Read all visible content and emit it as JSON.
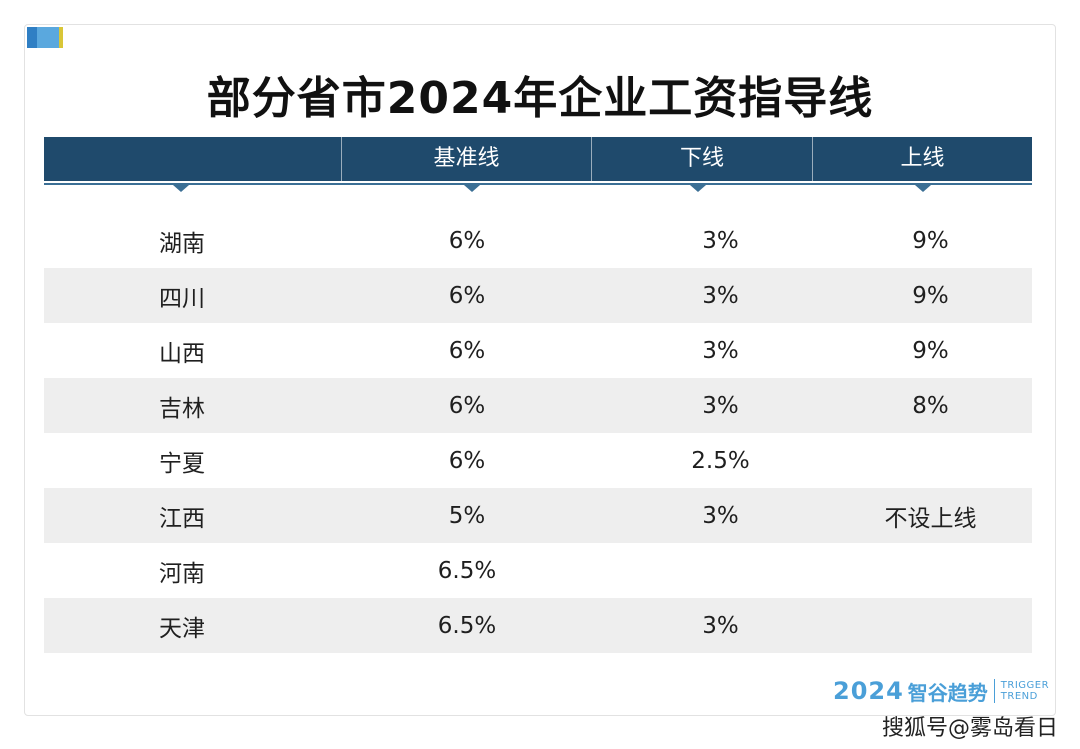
{
  "title": "部分省市2024年企业工资指导线",
  "columns": [
    "",
    "基准线",
    "下线",
    "上线"
  ],
  "rows": [
    {
      "province": "湖南",
      "base": "6%",
      "lower": "3%",
      "upper": "9%"
    },
    {
      "province": "四川",
      "base": "6%",
      "lower": "3%",
      "upper": "9%"
    },
    {
      "province": "山西",
      "base": "6%",
      "lower": "3%",
      "upper": "9%"
    },
    {
      "province": "吉林",
      "base": "6%",
      "lower": "3%",
      "upper": "8%"
    },
    {
      "province": "宁夏",
      "base": "6%",
      "lower": "2.5%",
      "upper": ""
    },
    {
      "province": "江西",
      "base": "5%",
      "lower": "3%",
      "upper": "不设上线"
    },
    {
      "province": "河南",
      "base": "6.5%",
      "lower": "",
      "upper": ""
    },
    {
      "province": "天津",
      "base": "6.5%",
      "lower": "3%",
      "upper": ""
    }
  ],
  "brand": {
    "year": "2024",
    "name": "智谷趋势",
    "en_line1": "TRIGGER",
    "en_line2": "TREND"
  },
  "watermark": "搜狐号@雾岛看日",
  "colors": {
    "header_bg": "#1f4a6c",
    "stripe": "#eeeeee",
    "brand": "#4a9fd8"
  }
}
